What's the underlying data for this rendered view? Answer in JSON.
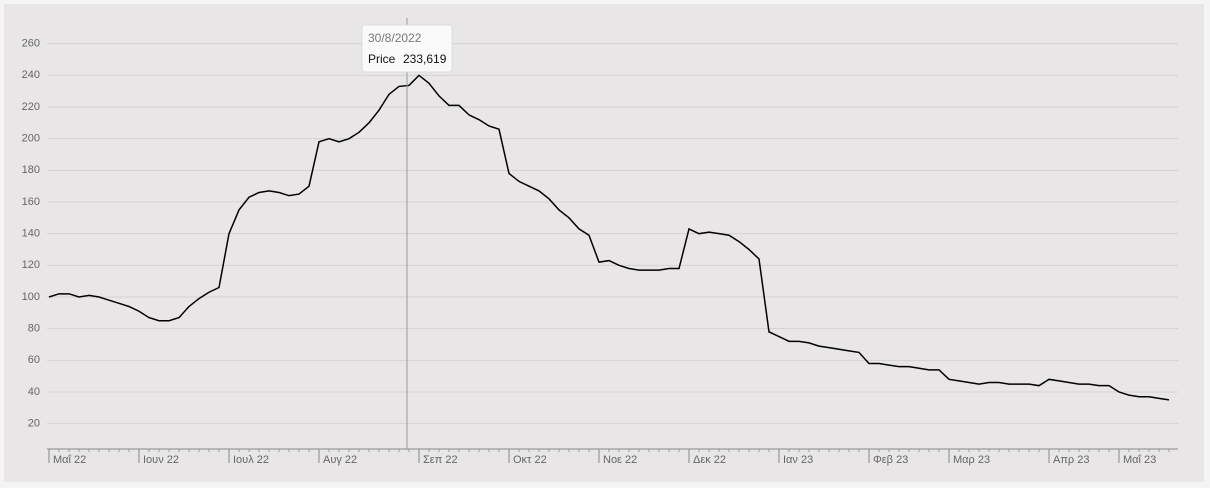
{
  "chart_data": {
    "type": "line",
    "categories": [
      "Μαΐ 22",
      null,
      null,
      null,
      null,
      null,
      null,
      null,
      null,
      "Ιουν 22",
      null,
      null,
      null,
      null,
      null,
      null,
      null,
      null,
      "Ιουλ 22",
      null,
      null,
      null,
      null,
      null,
      null,
      null,
      null,
      "Αυγ 22",
      null,
      null,
      null,
      null,
      null,
      null,
      null,
      null,
      null,
      "Σεπ 22",
      null,
      null,
      null,
      null,
      null,
      null,
      null,
      null,
      "Οκτ 22",
      null,
      null,
      null,
      null,
      null,
      null,
      null,
      null,
      "Νοε 22",
      null,
      null,
      null,
      null,
      null,
      null,
      null,
      null,
      "Δεκ 22",
      null,
      null,
      null,
      null,
      null,
      null,
      null,
      null,
      "Ιαν 23",
      null,
      null,
      null,
      null,
      null,
      null,
      null,
      null,
      "Φεβ 23",
      null,
      null,
      null,
      null,
      null,
      null,
      null,
      "Μαρ 23",
      null,
      null,
      null,
      null,
      null,
      null,
      null,
      null,
      null,
      "Απρ 23",
      null,
      null,
      null,
      null,
      null,
      null,
      "Μαΐ 23",
      null,
      null,
      null,
      null,
      null
    ],
    "series": [
      {
        "name": "Price",
        "color": "#000000",
        "values": [
          100,
          102,
          102,
          100,
          101,
          100,
          98,
          96,
          94,
          91,
          87,
          85,
          85,
          87,
          94,
          99,
          103,
          106,
          140,
          155,
          163,
          166,
          167,
          166,
          164,
          165,
          170,
          198,
          200,
          198,
          200,
          204,
          210,
          218,
          228,
          233,
          233.619,
          240,
          235,
          227,
          221,
          221,
          215,
          212,
          208,
          206,
          178,
          173,
          170,
          167,
          162,
          155,
          150,
          143,
          139,
          122,
          123,
          120,
          118,
          117,
          117,
          117,
          118,
          118,
          143,
          140,
          141,
          140,
          139,
          135,
          130,
          124,
          78,
          75,
          72,
          72,
          71,
          69,
          68,
          67,
          66,
          65,
          58,
          58,
          57,
          56,
          56,
          55,
          54,
          54,
          48,
          47,
          46,
          45,
          46,
          46,
          45,
          45,
          45,
          44,
          48,
          47,
          46,
          45,
          45,
          44,
          44,
          40,
          38,
          37,
          37,
          36,
          35
        ]
      }
    ],
    "ylim": [
      4,
      280
    ],
    "yticks": [
      20,
      40,
      60,
      80,
      100,
      120,
      140,
      160,
      180,
      200,
      220,
      240,
      260
    ],
    "grid": true,
    "tooltip": {
      "title": "30/8/2022",
      "value_label": "233,619"
    }
  }
}
